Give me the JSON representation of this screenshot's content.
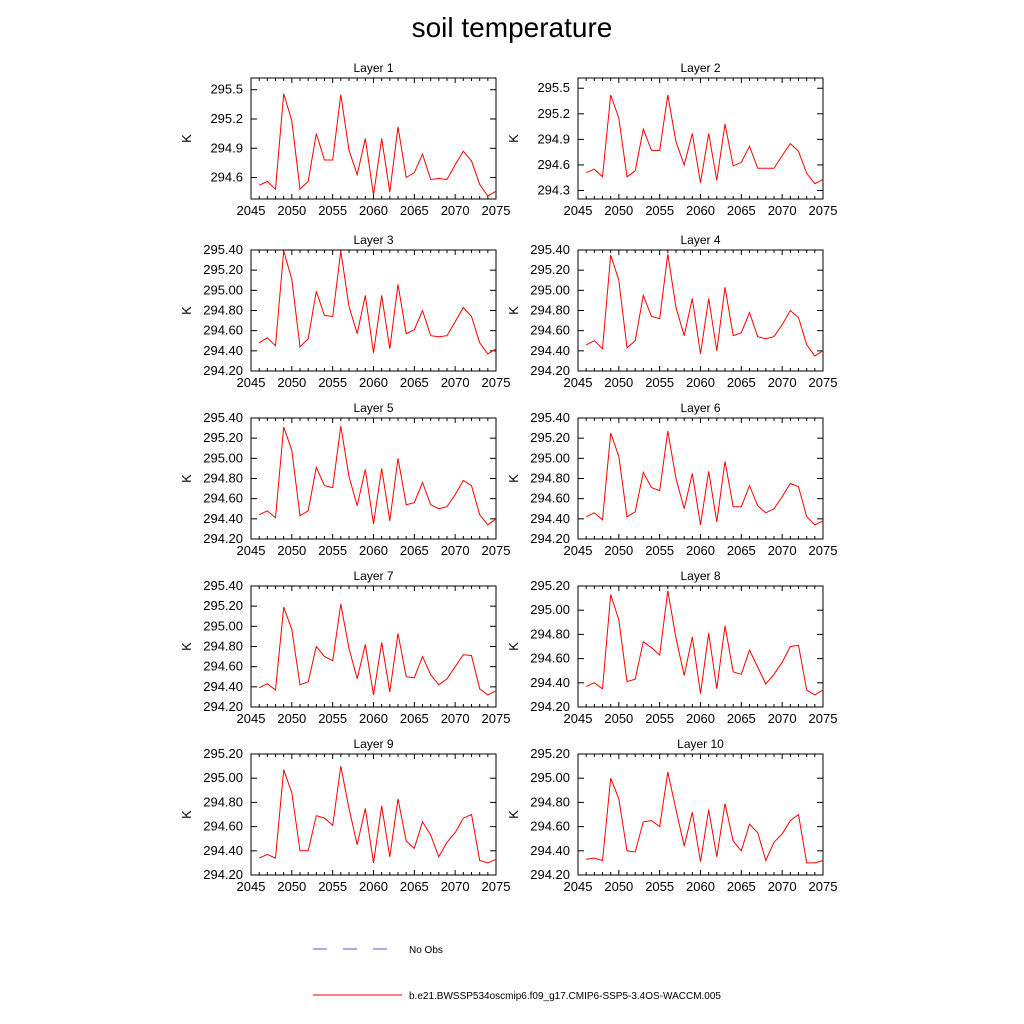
{
  "figure": {
    "title": "soil temperature",
    "legend": {
      "obs_label": "No Obs",
      "model_label": "b.e21.BWSSP534oscmip6.f09_g17.CMIP6-SSP5-3.4OS-WACCM.005",
      "obs_color": "#4a5fcf",
      "model_color": "#ff0000"
    }
  },
  "chart_data": [
    {
      "type": "line",
      "title": "Layer 1",
      "ylabel": "K",
      "xlim": [
        2045,
        2075
      ],
      "xticks": [
        "2045",
        "2050",
        "2055",
        "2060",
        "2065",
        "2070",
        "2075"
      ],
      "ylim": [
        294.38,
        295.62
      ],
      "yticks": [
        "294.6",
        "294.9",
        "295.2",
        "295.5"
      ],
      "series": [
        {
          "color": "#ff0000",
          "x": [
            2046,
            2047,
            2048,
            2049,
            2050,
            2051,
            2052,
            2053,
            2054,
            2055,
            2056,
            2057,
            2058,
            2059,
            2060,
            2061,
            2062,
            2063,
            2064,
            2065,
            2066,
            2067,
            2068,
            2069,
            2070,
            2071,
            2072,
            2073,
            2074,
            2075
          ],
          "values": [
            294.52,
            294.56,
            294.48,
            295.46,
            295.18,
            294.48,
            294.56,
            295.05,
            294.78,
            294.78,
            295.45,
            294.88,
            294.63,
            295.0,
            294.42,
            295.0,
            294.45,
            295.12,
            294.6,
            294.65,
            294.84,
            294.58,
            294.59,
            294.58,
            294.73,
            294.87,
            294.77,
            294.53,
            294.41,
            294.46
          ]
        }
      ]
    },
    {
      "type": "line",
      "title": "Layer 2",
      "ylabel": "K",
      "xlim": [
        2045,
        2075
      ],
      "xticks": [
        "2045",
        "2050",
        "2055",
        "2060",
        "2065",
        "2070",
        "2075"
      ],
      "ylim": [
        294.2,
        295.62
      ],
      "yticks": [
        "294.3",
        "294.6",
        "294.9",
        "295.2",
        "295.5"
      ],
      "series": [
        {
          "color": "#ff0000",
          "x": [
            2046,
            2047,
            2048,
            2049,
            2050,
            2051,
            2052,
            2053,
            2054,
            2055,
            2056,
            2057,
            2058,
            2059,
            2060,
            2061,
            2062,
            2063,
            2064,
            2065,
            2066,
            2067,
            2068,
            2069,
            2070,
            2071,
            2072,
            2073,
            2074,
            2075
          ],
          "values": [
            294.51,
            294.55,
            294.46,
            295.42,
            295.15,
            294.46,
            294.53,
            295.02,
            294.77,
            294.77,
            295.42,
            294.87,
            294.6,
            294.97,
            294.39,
            294.97,
            294.42,
            295.08,
            294.59,
            294.63,
            294.82,
            294.56,
            294.56,
            294.56,
            294.71,
            294.85,
            294.76,
            294.5,
            294.38,
            294.43
          ]
        }
      ]
    },
    {
      "type": "line",
      "title": "Layer 3",
      "ylabel": "K",
      "xlim": [
        2045,
        2075
      ],
      "xticks": [
        "2045",
        "2050",
        "2055",
        "2060",
        "2065",
        "2070",
        "2075"
      ],
      "ylim": [
        294.2,
        295.4
      ],
      "yticks": [
        "294.20",
        "294.40",
        "294.60",
        "294.80",
        "295.00",
        "295.20",
        "295.40"
      ],
      "series": [
        {
          "color": "#ff0000",
          "x": [
            2046,
            2047,
            2048,
            2049,
            2050,
            2051,
            2052,
            2053,
            2054,
            2055,
            2056,
            2057,
            2058,
            2059,
            2060,
            2061,
            2062,
            2063,
            2064,
            2065,
            2066,
            2067,
            2068,
            2069,
            2070,
            2071,
            2072,
            2073,
            2074,
            2075
          ],
          "values": [
            294.48,
            294.53,
            294.45,
            295.39,
            295.11,
            294.44,
            294.52,
            294.99,
            294.75,
            294.74,
            295.39,
            294.84,
            294.57,
            294.95,
            294.38,
            294.95,
            294.42,
            295.06,
            294.57,
            294.61,
            294.8,
            294.55,
            294.54,
            294.55,
            294.69,
            294.83,
            294.74,
            294.48,
            294.37,
            294.42
          ]
        }
      ]
    },
    {
      "type": "line",
      "title": "Layer 4",
      "ylabel": "K",
      "xlim": [
        2045,
        2075
      ],
      "xticks": [
        "2045",
        "2050",
        "2055",
        "2060",
        "2065",
        "2070",
        "2075"
      ],
      "ylim": [
        294.2,
        295.4
      ],
      "yticks": [
        "294.20",
        "294.40",
        "294.60",
        "294.80",
        "295.00",
        "295.20",
        "295.40"
      ],
      "series": [
        {
          "color": "#ff0000",
          "x": [
            2046,
            2047,
            2048,
            2049,
            2050,
            2051,
            2052,
            2053,
            2054,
            2055,
            2056,
            2057,
            2058,
            2059,
            2060,
            2061,
            2062,
            2063,
            2064,
            2065,
            2066,
            2067,
            2068,
            2069,
            2070,
            2071,
            2072,
            2073,
            2074,
            2075
          ],
          "values": [
            294.46,
            294.5,
            294.42,
            295.35,
            295.1,
            294.43,
            294.5,
            294.95,
            294.74,
            294.72,
            295.36,
            294.83,
            294.55,
            294.92,
            294.37,
            294.92,
            294.4,
            295.03,
            294.55,
            294.58,
            294.78,
            294.54,
            294.52,
            294.54,
            294.66,
            294.8,
            294.73,
            294.46,
            294.35,
            294.4
          ]
        }
      ]
    },
    {
      "type": "line",
      "title": "Layer 5",
      "ylabel": "K",
      "xlim": [
        2045,
        2075
      ],
      "xticks": [
        "2045",
        "2050",
        "2055",
        "2060",
        "2065",
        "2070",
        "2075"
      ],
      "ylim": [
        294.2,
        295.4
      ],
      "yticks": [
        "294.20",
        "294.40",
        "294.60",
        "294.80",
        "295.00",
        "295.20",
        "295.40"
      ],
      "series": [
        {
          "color": "#ff0000",
          "x": [
            2046,
            2047,
            2048,
            2049,
            2050,
            2051,
            2052,
            2053,
            2054,
            2055,
            2056,
            2057,
            2058,
            2059,
            2060,
            2061,
            2062,
            2063,
            2064,
            2065,
            2066,
            2067,
            2068,
            2069,
            2070,
            2071,
            2072,
            2073,
            2074,
            2075
          ],
          "values": [
            294.44,
            294.48,
            294.41,
            295.31,
            295.08,
            294.43,
            294.48,
            294.91,
            294.73,
            294.71,
            295.32,
            294.82,
            294.53,
            294.89,
            294.35,
            294.9,
            294.38,
            295.0,
            294.54,
            294.56,
            294.76,
            294.54,
            294.5,
            294.52,
            294.64,
            294.78,
            294.73,
            294.44,
            294.34,
            294.4
          ]
        }
      ]
    },
    {
      "type": "line",
      "title": "Layer 6",
      "ylabel": "K",
      "xlim": [
        2045,
        2075
      ],
      "xticks": [
        "2045",
        "2050",
        "2055",
        "2060",
        "2065",
        "2070",
        "2075"
      ],
      "ylim": [
        294.2,
        295.4
      ],
      "yticks": [
        "294.20",
        "294.40",
        "294.60",
        "294.80",
        "295.00",
        "295.20",
        "295.40"
      ],
      "series": [
        {
          "color": "#ff0000",
          "x": [
            2046,
            2047,
            2048,
            2049,
            2050,
            2051,
            2052,
            2053,
            2054,
            2055,
            2056,
            2057,
            2058,
            2059,
            2060,
            2061,
            2062,
            2063,
            2064,
            2065,
            2066,
            2067,
            2068,
            2069,
            2070,
            2071,
            2072,
            2073,
            2074,
            2075
          ],
          "values": [
            294.42,
            294.46,
            294.39,
            295.25,
            295.02,
            294.42,
            294.47,
            294.86,
            294.71,
            294.68,
            295.27,
            294.8,
            294.5,
            294.85,
            294.34,
            294.87,
            294.37,
            294.97,
            294.52,
            294.52,
            294.73,
            294.53,
            294.46,
            294.5,
            294.62,
            294.75,
            294.72,
            294.42,
            294.34,
            294.38
          ]
        }
      ]
    },
    {
      "type": "line",
      "title": "Layer 7",
      "ylabel": "K",
      "xlim": [
        2045,
        2075
      ],
      "xticks": [
        "2045",
        "2050",
        "2055",
        "2060",
        "2065",
        "2070",
        "2075"
      ],
      "ylim": [
        294.2,
        295.4
      ],
      "yticks": [
        "294.20",
        "294.40",
        "294.60",
        "294.80",
        "295.00",
        "295.20",
        "295.40"
      ],
      "series": [
        {
          "color": "#ff0000",
          "x": [
            2046,
            2047,
            2048,
            2049,
            2050,
            2051,
            2052,
            2053,
            2054,
            2055,
            2056,
            2057,
            2058,
            2059,
            2060,
            2061,
            2062,
            2063,
            2064,
            2065,
            2066,
            2067,
            2068,
            2069,
            2070,
            2071,
            2072,
            2073,
            2074,
            2075
          ],
          "values": [
            294.39,
            294.43,
            294.37,
            295.19,
            294.97,
            294.42,
            294.45,
            294.8,
            294.7,
            294.66,
            295.22,
            294.78,
            294.48,
            294.82,
            294.32,
            294.84,
            294.35,
            294.93,
            294.5,
            294.49,
            294.7,
            294.52,
            294.42,
            294.48,
            294.6,
            294.72,
            294.71,
            294.38,
            294.32,
            294.36
          ]
        }
      ]
    },
    {
      "type": "line",
      "title": "Layer 8",
      "ylabel": "K",
      "xlim": [
        2045,
        2075
      ],
      "xticks": [
        "2045",
        "2050",
        "2055",
        "2060",
        "2065",
        "2070",
        "2075"
      ],
      "ylim": [
        294.2,
        295.2
      ],
      "yticks": [
        "294.20",
        "294.40",
        "294.60",
        "294.80",
        "295.00",
        "295.20"
      ],
      "series": [
        {
          "color": "#ff0000",
          "x": [
            2046,
            2047,
            2048,
            2049,
            2050,
            2051,
            2052,
            2053,
            2054,
            2055,
            2056,
            2057,
            2058,
            2059,
            2060,
            2061,
            2062,
            2063,
            2064,
            2065,
            2066,
            2067,
            2068,
            2069,
            2070,
            2071,
            2072,
            2073,
            2074,
            2075
          ],
          "values": [
            294.37,
            294.4,
            294.35,
            295.13,
            294.92,
            294.41,
            294.43,
            294.74,
            294.69,
            294.63,
            295.16,
            294.77,
            294.46,
            294.78,
            294.31,
            294.81,
            294.35,
            294.87,
            294.49,
            294.47,
            294.67,
            294.53,
            294.39,
            294.47,
            294.57,
            294.7,
            294.71,
            294.34,
            294.3,
            294.34
          ]
        }
      ]
    },
    {
      "type": "line",
      "title": "Layer 9",
      "ylabel": "K",
      "xlim": [
        2045,
        2075
      ],
      "xticks": [
        "2045",
        "2050",
        "2055",
        "2060",
        "2065",
        "2070",
        "2075"
      ],
      "ylim": [
        294.2,
        295.2
      ],
      "yticks": [
        "294.20",
        "294.40",
        "294.60",
        "294.80",
        "295.00",
        "295.20"
      ],
      "series": [
        {
          "color": "#ff0000",
          "x": [
            2046,
            2047,
            2048,
            2049,
            2050,
            2051,
            2052,
            2053,
            2054,
            2055,
            2056,
            2057,
            2058,
            2059,
            2060,
            2061,
            2062,
            2063,
            2064,
            2065,
            2066,
            2067,
            2068,
            2069,
            2070,
            2071,
            2072,
            2073,
            2074,
            2075
          ],
          "values": [
            294.34,
            294.37,
            294.34,
            295.07,
            294.88,
            294.4,
            294.4,
            294.69,
            294.67,
            294.61,
            295.1,
            294.75,
            294.45,
            294.75,
            294.3,
            294.77,
            294.35,
            294.83,
            294.48,
            294.42,
            294.64,
            294.53,
            294.35,
            294.47,
            294.55,
            294.67,
            294.7,
            294.32,
            294.3,
            294.33
          ]
        }
      ]
    },
    {
      "type": "line",
      "title": "Layer 10",
      "ylabel": "K",
      "xlim": [
        2045,
        2075
      ],
      "xticks": [
        "2045",
        "2050",
        "2055",
        "2060",
        "2065",
        "2070",
        "2075"
      ],
      "ylim": [
        294.2,
        295.2
      ],
      "yticks": [
        "294.20",
        "294.40",
        "294.60",
        "294.80",
        "295.00",
        "295.20"
      ],
      "series": [
        {
          "color": "#ff0000",
          "x": [
            2046,
            2047,
            2048,
            2049,
            2050,
            2051,
            2052,
            2053,
            2054,
            2055,
            2056,
            2057,
            2058,
            2059,
            2060,
            2061,
            2062,
            2063,
            2064,
            2065,
            2066,
            2067,
            2068,
            2069,
            2070,
            2071,
            2072,
            2073,
            2074,
            2075
          ],
          "values": [
            294.33,
            294.34,
            294.32,
            295.0,
            294.83,
            294.4,
            294.39,
            294.64,
            294.65,
            294.6,
            295.05,
            294.74,
            294.44,
            294.72,
            294.31,
            294.74,
            294.35,
            294.79,
            294.48,
            294.4,
            294.62,
            294.55,
            294.32,
            294.47,
            294.54,
            294.65,
            294.7,
            294.3,
            294.3,
            294.32
          ]
        }
      ]
    }
  ]
}
